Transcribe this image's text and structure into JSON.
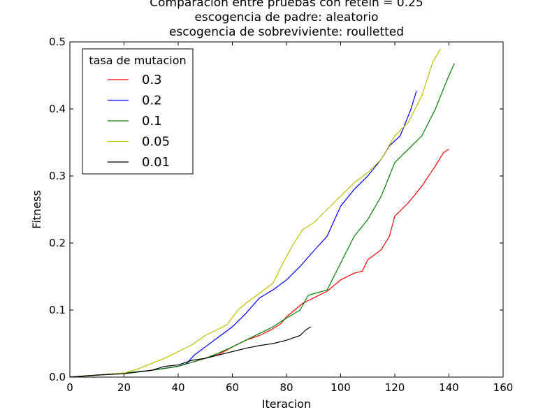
{
  "chart_data": {
    "type": "line",
    "title_lines": [
      "Comparacion entre pruebas con retein = 0.25",
      "escogencia de padre: aleatorio",
      "escogencia de sobreviviente: roulletted"
    ],
    "xlabel": "Iteracion",
    "ylabel": "Fitness",
    "xlim": [
      0,
      160
    ],
    "ylim": [
      0,
      0.5
    ],
    "xticks": [
      "0",
      "20",
      "40",
      "60",
      "80",
      "100",
      "120",
      "140",
      "160"
    ],
    "yticks": [
      "0.0",
      "0.1",
      "0.2",
      "0.3",
      "0.4",
      "0.5"
    ],
    "grid": false,
    "legend": {
      "title": "tasa de mutacion",
      "position": "top-left"
    },
    "series": [
      {
        "name": "0.3",
        "color": "#ff0000",
        "points": [
          [
            0,
            0
          ],
          [
            10,
            0.003
          ],
          [
            20,
            0.006
          ],
          [
            30,
            0.01
          ],
          [
            40,
            0.016
          ],
          [
            45,
            0.022
          ],
          [
            50,
            0.028
          ],
          [
            55,
            0.034
          ],
          [
            60,
            0.045
          ],
          [
            65,
            0.055
          ],
          [
            70,
            0.062
          ],
          [
            75,
            0.072
          ],
          [
            78,
            0.08
          ],
          [
            80,
            0.09
          ],
          [
            83,
            0.1
          ],
          [
            86,
            0.11
          ],
          [
            90,
            0.118
          ],
          [
            95,
            0.128
          ],
          [
            100,
            0.145
          ],
          [
            105,
            0.155
          ],
          [
            108,
            0.158
          ],
          [
            110,
            0.175
          ],
          [
            115,
            0.19
          ],
          [
            118,
            0.21
          ],
          [
            120,
            0.24
          ],
          [
            125,
            0.26
          ],
          [
            130,
            0.285
          ],
          [
            135,
            0.315
          ],
          [
            138,
            0.335
          ],
          [
            140,
            0.34
          ]
        ]
      },
      {
        "name": "0.2",
        "color": "#0000ff",
        "points": [
          [
            0,
            0
          ],
          [
            10,
            0.003
          ],
          [
            20,
            0.006
          ],
          [
            30,
            0.01
          ],
          [
            40,
            0.016
          ],
          [
            43,
            0.02
          ],
          [
            46,
            0.033
          ],
          [
            50,
            0.045
          ],
          [
            55,
            0.06
          ],
          [
            60,
            0.075
          ],
          [
            65,
            0.095
          ],
          [
            70,
            0.118
          ],
          [
            75,
            0.13
          ],
          [
            80,
            0.145
          ],
          [
            85,
            0.165
          ],
          [
            90,
            0.188
          ],
          [
            95,
            0.21
          ],
          [
            100,
            0.255
          ],
          [
            105,
            0.28
          ],
          [
            110,
            0.3
          ],
          [
            115,
            0.325
          ],
          [
            118,
            0.345
          ],
          [
            122,
            0.36
          ],
          [
            126,
            0.4
          ],
          [
            128,
            0.427
          ]
        ]
      },
      {
        "name": "0.1",
        "color": "#008000",
        "points": [
          [
            0,
            0
          ],
          [
            10,
            0.003
          ],
          [
            20,
            0.006
          ],
          [
            30,
            0.01
          ],
          [
            40,
            0.016
          ],
          [
            45,
            0.022
          ],
          [
            50,
            0.028
          ],
          [
            55,
            0.036
          ],
          [
            60,
            0.045
          ],
          [
            65,
            0.055
          ],
          [
            70,
            0.065
          ],
          [
            75,
            0.075
          ],
          [
            80,
            0.088
          ],
          [
            85,
            0.1
          ],
          [
            88,
            0.122
          ],
          [
            95,
            0.13
          ],
          [
            100,
            0.17
          ],
          [
            105,
            0.21
          ],
          [
            110,
            0.235
          ],
          [
            115,
            0.27
          ],
          [
            120,
            0.32
          ],
          [
            125,
            0.34
          ],
          [
            130,
            0.36
          ],
          [
            135,
            0.4
          ],
          [
            140,
            0.45
          ],
          [
            142,
            0.468
          ]
        ]
      },
      {
        "name": "0.05",
        "color": "#bfbf00",
        "points": [
          [
            0,
            0
          ],
          [
            10,
            0.003
          ],
          [
            20,
            0.006
          ],
          [
            25,
            0.012
          ],
          [
            30,
            0.02
          ],
          [
            35,
            0.028
          ],
          [
            40,
            0.038
          ],
          [
            45,
            0.048
          ],
          [
            50,
            0.062
          ],
          [
            55,
            0.072
          ],
          [
            58,
            0.078
          ],
          [
            62,
            0.1
          ],
          [
            65,
            0.11
          ],
          [
            70,
            0.125
          ],
          [
            75,
            0.14
          ],
          [
            78,
            0.165
          ],
          [
            82,
            0.195
          ],
          [
            86,
            0.22
          ],
          [
            90,
            0.23
          ],
          [
            95,
            0.25
          ],
          [
            100,
            0.27
          ],
          [
            105,
            0.29
          ],
          [
            110,
            0.305
          ],
          [
            115,
            0.325
          ],
          [
            120,
            0.36
          ],
          [
            125,
            0.38
          ],
          [
            130,
            0.42
          ],
          [
            134,
            0.47
          ],
          [
            137,
            0.49
          ]
        ]
      },
      {
        "name": "0.01",
        "color": "#000000",
        "points": [
          [
            0,
            0
          ],
          [
            10,
            0.003
          ],
          [
            20,
            0.005
          ],
          [
            30,
            0.01
          ],
          [
            35,
            0.016
          ],
          [
            40,
            0.018
          ],
          [
            45,
            0.025
          ],
          [
            50,
            0.028
          ],
          [
            55,
            0.033
          ],
          [
            60,
            0.038
          ],
          [
            65,
            0.043
          ],
          [
            70,
            0.047
          ],
          [
            75,
            0.05
          ],
          [
            80,
            0.055
          ],
          [
            85,
            0.062
          ],
          [
            87,
            0.07
          ],
          [
            89,
            0.075
          ]
        ]
      }
    ]
  }
}
